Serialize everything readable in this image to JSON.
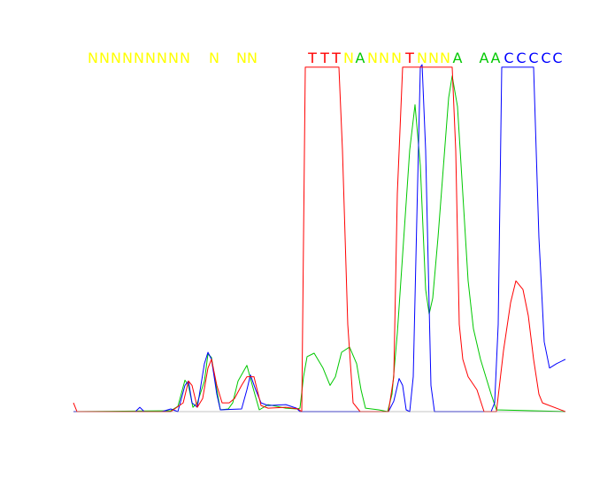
{
  "chart_data": {
    "type": "line",
    "title": "",
    "xlabel": "",
    "ylabel": "",
    "x_range": [
      0,
      556
    ],
    "y_range": [
      0,
      400
    ],
    "grid": false,
    "legend": "none",
    "colors": {
      "A": "#00c800",
      "C": "#0000ff",
      "T": "#ff0000",
      "N": "#ffff00"
    },
    "base_calls": [
      {
        "base": "N",
        "x": 22,
        "color": "N"
      },
      {
        "base": "N",
        "x": 35,
        "color": "N"
      },
      {
        "base": "N",
        "x": 48,
        "color": "N"
      },
      {
        "base": "N",
        "x": 61,
        "color": "N"
      },
      {
        "base": "N",
        "x": 74,
        "color": "N"
      },
      {
        "base": "N",
        "x": 87,
        "color": "N"
      },
      {
        "base": "N",
        "x": 100,
        "color": "N"
      },
      {
        "base": "N",
        "x": 113,
        "color": "N"
      },
      {
        "base": "N",
        "x": 126,
        "color": "N"
      },
      {
        "base": "N",
        "x": 159,
        "color": "N"
      },
      {
        "base": "N",
        "x": 190,
        "color": "N"
      },
      {
        "base": "N",
        "x": 202,
        "color": "N"
      },
      {
        "base": "T",
        "x": 270,
        "color": "T"
      },
      {
        "base": "T",
        "x": 284,
        "color": "T"
      },
      {
        "base": "T",
        "x": 297,
        "color": "T"
      },
      {
        "base": "N",
        "x": 311,
        "color": "N"
      },
      {
        "base": "A",
        "x": 324,
        "color": "A"
      },
      {
        "base": "N",
        "x": 338,
        "color": "N"
      },
      {
        "base": "N",
        "x": 351,
        "color": "N"
      },
      {
        "base": "N",
        "x": 365,
        "color": "N"
      },
      {
        "base": "T",
        "x": 380,
        "color": "T"
      },
      {
        "base": "N",
        "x": 394,
        "color": "N"
      },
      {
        "base": "N",
        "x": 407,
        "color": "N"
      },
      {
        "base": "N",
        "x": 420,
        "color": "N"
      },
      {
        "base": "A",
        "x": 434,
        "color": "A"
      },
      {
        "base": "A",
        "x": 464,
        "color": "A"
      },
      {
        "base": "A",
        "x": 477,
        "color": "A"
      },
      {
        "base": "C",
        "x": 492,
        "color": "C"
      },
      {
        "base": "C",
        "x": 506,
        "color": "C"
      },
      {
        "base": "C",
        "x": 520,
        "color": "C"
      },
      {
        "base": "C",
        "x": 534,
        "color": "C"
      },
      {
        "base": "C",
        "x": 547,
        "color": "C"
      }
    ],
    "series": [
      {
        "color": "A",
        "points": [
          [
            0,
            0
          ],
          [
            110,
            1
          ],
          [
            118,
            6
          ],
          [
            126,
            36
          ],
          [
            130,
            30
          ],
          [
            135,
            5
          ],
          [
            140,
            10
          ],
          [
            148,
            35
          ],
          [
            152,
            66
          ],
          [
            156,
            62
          ],
          [
            162,
            25
          ],
          [
            166,
            2
          ],
          [
            175,
            3
          ],
          [
            180,
            10
          ],
          [
            186,
            35
          ],
          [
            196,
            53
          ],
          [
            203,
            27
          ],
          [
            210,
            2
          ],
          [
            220,
            8
          ],
          [
            240,
            4
          ],
          [
            252,
            3
          ],
          [
            256,
            4
          ],
          [
            260,
            40
          ],
          [
            264,
            63
          ],
          [
            272,
            67
          ],
          [
            282,
            50
          ],
          [
            290,
            30
          ],
          [
            296,
            40
          ],
          [
            303,
            68
          ],
          [
            312,
            74
          ],
          [
            320,
            55
          ],
          [
            325,
            25
          ],
          [
            330,
            4
          ],
          [
            345,
            2
          ],
          [
            355,
            0
          ],
          [
            360,
            20
          ],
          [
            366,
            90
          ],
          [
            372,
            180
          ],
          [
            380,
            300
          ],
          [
            386,
            352
          ],
          [
            392,
            282
          ],
          [
            398,
            140
          ],
          [
            402,
            112
          ],
          [
            406,
            130
          ],
          [
            412,
            200
          ],
          [
            418,
            280
          ],
          [
            424,
            360
          ],
          [
            428,
            385
          ],
          [
            434,
            350
          ],
          [
            440,
            250
          ],
          [
            446,
            150
          ],
          [
            452,
            95
          ],
          [
            460,
            60
          ],
          [
            466,
            40
          ],
          [
            472,
            20
          ],
          [
            478,
            2
          ],
          [
            556,
            0
          ]
        ]
      },
      {
        "color": "C",
        "points": [
          [
            0,
            0
          ],
          [
            70,
            0
          ],
          [
            75,
            5
          ],
          [
            80,
            0
          ],
          [
            100,
            0
          ],
          [
            110,
            3
          ],
          [
            118,
            0
          ],
          [
            126,
            30
          ],
          [
            130,
            35
          ],
          [
            134,
            10
          ],
          [
            140,
            5
          ],
          [
            148,
            55
          ],
          [
            152,
            68
          ],
          [
            156,
            60
          ],
          [
            162,
            20
          ],
          [
            166,
            2
          ],
          [
            190,
            3
          ],
          [
            196,
            25
          ],
          [
            200,
            42
          ],
          [
            206,
            25
          ],
          [
            212,
            10
          ],
          [
            220,
            7
          ],
          [
            240,
            8
          ],
          [
            252,
            4
          ],
          [
            256,
            0
          ],
          [
            356,
            0
          ],
          [
            362,
            12
          ],
          [
            368,
            38
          ],
          [
            372,
            30
          ],
          [
            376,
            2
          ],
          [
            380,
            0
          ],
          [
            384,
            40
          ],
          [
            388,
            220
          ],
          [
            392,
            395
          ],
          [
            394,
            398
          ],
          [
            398,
            300
          ],
          [
            404,
            30
          ],
          [
            408,
            0
          ],
          [
            472,
            0
          ],
          [
            476,
            10
          ],
          [
            480,
            100
          ],
          [
            484,
            395
          ],
          [
            520,
            395
          ],
          [
            526,
            200
          ],
          [
            532,
            80
          ],
          [
            538,
            50
          ],
          [
            546,
            55
          ],
          [
            556,
            60
          ]
        ]
      },
      {
        "color": "T",
        "points": [
          [
            0,
            10
          ],
          [
            4,
            0
          ],
          [
            110,
            0
          ],
          [
            124,
            10
          ],
          [
            130,
            35
          ],
          [
            134,
            30
          ],
          [
            140,
            5
          ],
          [
            146,
            15
          ],
          [
            152,
            50
          ],
          [
            156,
            60
          ],
          [
            162,
            30
          ],
          [
            168,
            10
          ],
          [
            176,
            10
          ],
          [
            182,
            15
          ],
          [
            190,
            30
          ],
          [
            196,
            40
          ],
          [
            204,
            40
          ],
          [
            212,
            7
          ],
          [
            220,
            4
          ],
          [
            240,
            5
          ],
          [
            254,
            3
          ],
          [
            258,
            0
          ],
          [
            262,
            395
          ],
          [
            300,
            395
          ],
          [
            304,
            300
          ],
          [
            310,
            100
          ],
          [
            316,
            10
          ],
          [
            324,
            0
          ],
          [
            356,
            0
          ],
          [
            362,
            40
          ],
          [
            366,
            250
          ],
          [
            372,
            395
          ],
          [
            428,
            395
          ],
          [
            432,
            300
          ],
          [
            436,
            100
          ],
          [
            440,
            60
          ],
          [
            446,
            40
          ],
          [
            456,
            25
          ],
          [
            464,
            0
          ],
          [
            478,
            0
          ],
          [
            486,
            70
          ],
          [
            494,
            125
          ],
          [
            500,
            150
          ],
          [
            508,
            140
          ],
          [
            514,
            110
          ],
          [
            520,
            60
          ],
          [
            526,
            20
          ],
          [
            530,
            10
          ],
          [
            556,
            0
          ]
        ]
      }
    ]
  }
}
